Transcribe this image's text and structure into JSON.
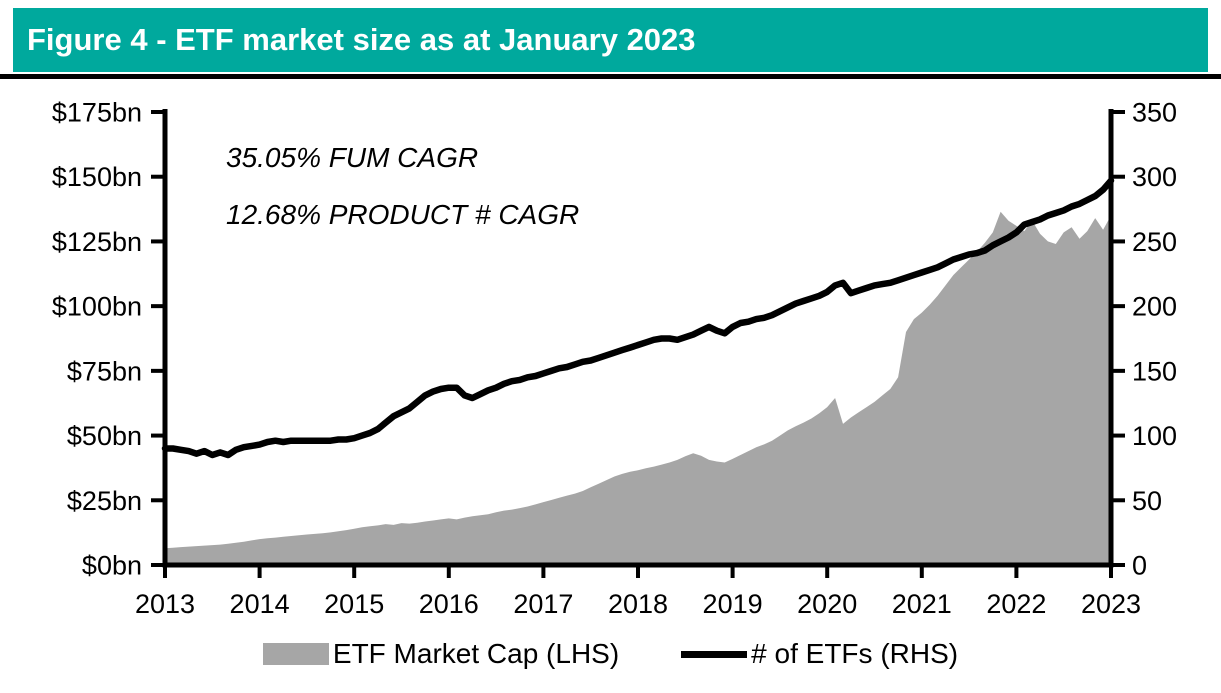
{
  "header": {
    "title": "Figure 4 - ETF market size as at January 2023",
    "bg_color": "#00A99D",
    "text_color": "#FFFFFF"
  },
  "chart_data": {
    "type": "area",
    "subtype": "monthly dual-axis combo: area (left axis) + line (right axis)",
    "x_range": [
      "Jan 2013",
      "Jan 2023"
    ],
    "x_tick_labels": [
      "2013",
      "2014",
      "2015",
      "2016",
      "2017",
      "2018",
      "2019",
      "2020",
      "2021",
      "2022",
      "2023"
    ],
    "left_axis": {
      "tick_labels_top_to_bottom": [
        "$175bn",
        "$150bn",
        "$125bn",
        "$100bn",
        "$75bn",
        "$50bn",
        "$25bn",
        "$0bn"
      ],
      "range": [
        0,
        175
      ],
      "unit": "$bn"
    },
    "right_axis": {
      "tick_labels_top_to_bottom": [
        "350",
        "300",
        "250",
        "200",
        "150",
        "100",
        "50",
        "0"
      ],
      "range": [
        0,
        350
      ]
    },
    "annotations": [
      {
        "text": "35.05% FUM CAGR"
      },
      {
        "text": "12.68% PRODUCT # CAGR"
      }
    ],
    "grid": "off",
    "legend_position": "bottom-center",
    "series": [
      {
        "name": "ETF Market Cap (LHS)",
        "type": "area",
        "axis": "left",
        "color": "#A6A6A6",
        "values": [
          6.5,
          6.7,
          6.9,
          7.1,
          7.3,
          7.5,
          7.7,
          7.9,
          8.2,
          8.6,
          9.0,
          9.5,
          10.0,
          10.3,
          10.6,
          10.9,
          11.2,
          11.5,
          11.8,
          12.0,
          12.3,
          12.6,
          13.0,
          13.5,
          14.0,
          14.6,
          15.0,
          15.3,
          15.8,
          15.5,
          16.2,
          16.0,
          16.3,
          16.8,
          17.2,
          17.6,
          18.0,
          17.6,
          18.3,
          18.8,
          19.2,
          19.6,
          20.4,
          21.0,
          21.4,
          22.0,
          22.6,
          23.4,
          24.3,
          25.1,
          26.0,
          26.8,
          27.6,
          28.6,
          30.0,
          31.4,
          32.8,
          34.2,
          35.2,
          36.0,
          36.6,
          37.4,
          38.0,
          38.8,
          39.6,
          40.6,
          42.0,
          43.2,
          42.2,
          40.6,
          40.0,
          39.6,
          41.0,
          42.5,
          44.0,
          45.5,
          46.6,
          48.0,
          50.0,
          52.0,
          53.6,
          55.0,
          56.6,
          58.6,
          61.0,
          64.5,
          54.5,
          57.0,
          59.0,
          61.0,
          63.0,
          65.5,
          68.0,
          72.5,
          90.0,
          95.0,
          97.5,
          100.5,
          104.0,
          108.0,
          112.0,
          115.0,
          118.0,
          121.0,
          124.5,
          128.5,
          136.5,
          133.0,
          131.0,
          129.0,
          133.0,
          128.0,
          125.0,
          124.0,
          128.5,
          130.5,
          126.0,
          129.0,
          134.0,
          129.5,
          135.0
        ]
      },
      {
        "name": "# of ETFs (RHS)",
        "type": "line",
        "axis": "right",
        "color": "#000000",
        "values": [
          90,
          90,
          89,
          88,
          86,
          88,
          85,
          87,
          85,
          89,
          91,
          92,
          93,
          95,
          96,
          95,
          96,
          96,
          96,
          96,
          96,
          96,
          97,
          97,
          98,
          100,
          102,
          105,
          110,
          115,
          118,
          121,
          126,
          131,
          134,
          136,
          137,
          137,
          131,
          129,
          132,
          135,
          137,
          140,
          142,
          143,
          145,
          146,
          148,
          150,
          152,
          153,
          155,
          157,
          158,
          160,
          162,
          164,
          166,
          168,
          170,
          172,
          174,
          175,
          175,
          174,
          176,
          178,
          181,
          184,
          181,
          179,
          184,
          187,
          188,
          190,
          191,
          193,
          196,
          199,
          202,
          204,
          206,
          208,
          211,
          216,
          218,
          210,
          212,
          214,
          216,
          217,
          218,
          220,
          222,
          224,
          226,
          228,
          230,
          233,
          236,
          238,
          240,
          241,
          243,
          247,
          250,
          253,
          257,
          263,
          265,
          267,
          270,
          272,
          274,
          277,
          279,
          282,
          285,
          290,
          297
        ]
      }
    ]
  }
}
